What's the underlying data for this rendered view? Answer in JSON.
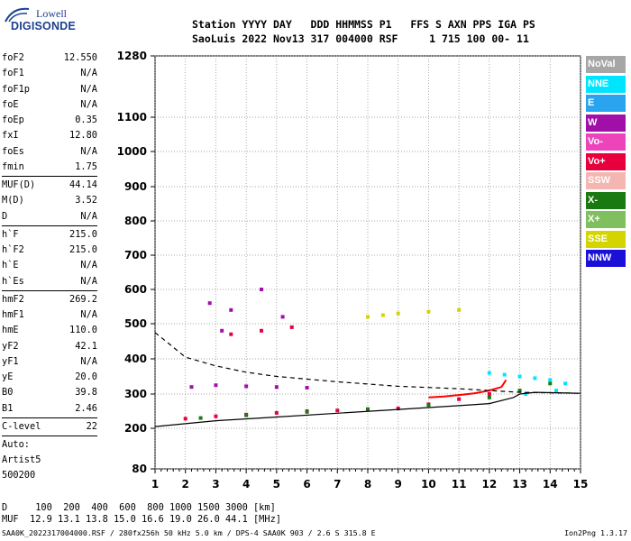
{
  "logo": {
    "line1": "Lowell",
    "line2": "DIGISONDE"
  },
  "header": {
    "line1": "Station YYYY DAY   DDD HHMMSS P1   FFS S AXN PPS IGA PS",
    "line2": "SaoLuis 2022 Nov13 317 004000 RSF     1 715 100 00- 11"
  },
  "params": {
    "g1": [
      {
        "name": "foF2",
        "value": "12.550"
      },
      {
        "name": "foF1",
        "value": "N/A"
      },
      {
        "name": "foF1p",
        "value": "N/A"
      },
      {
        "name": "foE",
        "value": "N/A"
      },
      {
        "name": "foEp",
        "value": "0.35"
      },
      {
        "name": "fxI",
        "value": "12.80"
      },
      {
        "name": "foEs",
        "value": "N/A"
      },
      {
        "name": "fmin",
        "value": "1.75"
      }
    ],
    "g2": [
      {
        "name": "MUF(D)",
        "value": "44.14"
      },
      {
        "name": "M(D)",
        "value": "3.52"
      },
      {
        "name": "D",
        "value": "N/A"
      }
    ],
    "g3": [
      {
        "name": "h`F",
        "value": "215.0"
      },
      {
        "name": "h`F2",
        "value": "215.0"
      },
      {
        "name": "h`E",
        "value": "N/A"
      },
      {
        "name": "h`Es",
        "value": "N/A"
      }
    ],
    "g4": [
      {
        "name": "hmF2",
        "value": "269.2"
      },
      {
        "name": "hmF1",
        "value": "N/A"
      },
      {
        "name": "hmE",
        "value": "110.0"
      },
      {
        "name": "yF2",
        "value": "42.1"
      },
      {
        "name": "yF1",
        "value": "N/A"
      },
      {
        "name": "yE",
        "value": "20.0"
      },
      {
        "name": "B0",
        "value": "39.8"
      },
      {
        "name": "B1",
        "value": "2.46"
      }
    ],
    "clevel": {
      "name": "C-level",
      "value": "22"
    },
    "auto_lines": [
      "Auto:",
      "Artist5",
      "500200"
    ]
  },
  "legend": [
    {
      "label": "NoVal",
      "color": "#a6a6a6"
    },
    {
      "label": "NNE",
      "color": "#00e5ff"
    },
    {
      "label": "E",
      "color": "#2ba4f0"
    },
    {
      "label": "W",
      "color": "#a010a8"
    },
    {
      "label": "Vo-",
      "color": "#ee44bb"
    },
    {
      "label": "Vo+",
      "color": "#e8003c"
    },
    {
      "label": "SSW",
      "color": "#f4b6b0"
    },
    {
      "label": "X-",
      "color": "#1a7a12"
    },
    {
      "label": "X+",
      "color": "#7fbf60"
    },
    {
      "label": "SSE",
      "color": "#d4d400"
    },
    {
      "label": "NNW",
      "color": "#1a10d8"
    }
  ],
  "footer": {
    "line1": "D     100  200  400  600  800 1000 1500 3000 [km]",
    "line2": "MUF  12.9 13.1 13.8 15.0 16.6 19.0 26.0 44.1 [MHz]",
    "bottom": "SAA0K_2022317004000.RSF / 280fx256h 50 kHz 5.0 km / DPS-4 SAA0K 903 / 2.6 S 315.8 E",
    "version": "Ion2Png 1.3.17"
  },
  "chart_data": {
    "type": "scatter",
    "title": "",
    "xlabel": "",
    "ylabel": "",
    "xlim": [
      1,
      15
    ],
    "ylim": [
      80,
      1280
    ],
    "x_ticks": [
      1,
      2,
      3,
      4,
      5,
      6,
      7,
      8,
      9,
      10,
      11,
      12,
      13,
      14,
      15
    ],
    "y_ticks": [
      80,
      200,
      300,
      400,
      500,
      600,
      700,
      800,
      900,
      1000,
      1100,
      1280
    ],
    "y_scale": "nonlinear (log-like, as printed)",
    "grid": "dotted",
    "series": [
      {
        "name": "W",
        "color": "#a010a8",
        "points": [
          [
            2.2,
            320
          ],
          [
            3.0,
            325
          ],
          [
            4.0,
            322
          ],
          [
            5.0,
            320
          ],
          [
            6.0,
            318
          ],
          [
            2.8,
            560
          ],
          [
            3.5,
            540
          ],
          [
            4.5,
            600
          ],
          [
            5.2,
            520
          ],
          [
            3.2,
            480
          ]
        ]
      },
      {
        "name": "Vo+",
        "color": "#e8003c",
        "points": [
          [
            2.0,
            228
          ],
          [
            3.0,
            235
          ],
          [
            4.0,
            240
          ],
          [
            5.0,
            245
          ],
          [
            6.0,
            250
          ],
          [
            7.0,
            252
          ],
          [
            8.0,
            255
          ],
          [
            9.0,
            258
          ],
          [
            10.0,
            270
          ],
          [
            11.0,
            285
          ],
          [
            12.0,
            300
          ],
          [
            3.5,
            470
          ],
          [
            4.5,
            480
          ],
          [
            5.5,
            490
          ]
        ]
      },
      {
        "name": "X-",
        "color": "#1a7a12",
        "points": [
          [
            2.5,
            230
          ],
          [
            4.0,
            238
          ],
          [
            6.0,
            248
          ],
          [
            8.0,
            256
          ],
          [
            10.0,
            268
          ],
          [
            12.0,
            290
          ],
          [
            13.0,
            310
          ],
          [
            14.0,
            330
          ]
        ]
      },
      {
        "name": "NNE",
        "color": "#00e5ff",
        "points": [
          [
            12.0,
            360
          ],
          [
            12.5,
            355
          ],
          [
            13.0,
            350
          ],
          [
            13.5,
            345
          ],
          [
            14.0,
            340
          ],
          [
            14.5,
            330
          ],
          [
            13.2,
            300
          ],
          [
            14.2,
            310
          ]
        ]
      },
      {
        "name": "SSE",
        "color": "#d4d400",
        "points": [
          [
            8.0,
            520
          ],
          [
            8.5,
            525
          ],
          [
            9.0,
            530
          ],
          [
            10.0,
            535
          ],
          [
            11.0,
            540
          ]
        ]
      }
    ],
    "traces": [
      {
        "name": "O-trace",
        "style": "solid",
        "color": "#ff0000",
        "points": [
          [
            10.0,
            290
          ],
          [
            10.5,
            293
          ],
          [
            11.0,
            297
          ],
          [
            11.5,
            302
          ],
          [
            12.0,
            310
          ],
          [
            12.4,
            320
          ],
          [
            12.55,
            340
          ]
        ]
      },
      {
        "name": "profile",
        "style": "solid",
        "color": "#000000",
        "points": [
          [
            1.0,
            205
          ],
          [
            3.0,
            222
          ],
          [
            5.0,
            233
          ],
          [
            7.0,
            244
          ],
          [
            9.0,
            255
          ],
          [
            11.0,
            266
          ],
          [
            12.0,
            272
          ],
          [
            12.8,
            290
          ],
          [
            13.0,
            300
          ],
          [
            13.5,
            305
          ],
          [
            15.0,
            302
          ]
        ]
      },
      {
        "name": "profile-top",
        "style": "dashed",
        "color": "#000000",
        "points": [
          [
            1.0,
            475
          ],
          [
            1.5,
            440
          ],
          [
            2.0,
            405
          ],
          [
            3.0,
            380
          ],
          [
            4.0,
            362
          ],
          [
            5.0,
            350
          ],
          [
            7.0,
            335
          ],
          [
            9.0,
            322
          ],
          [
            11.0,
            315
          ],
          [
            13.0,
            305
          ],
          [
            15.0,
            302
          ]
        ]
      }
    ]
  }
}
